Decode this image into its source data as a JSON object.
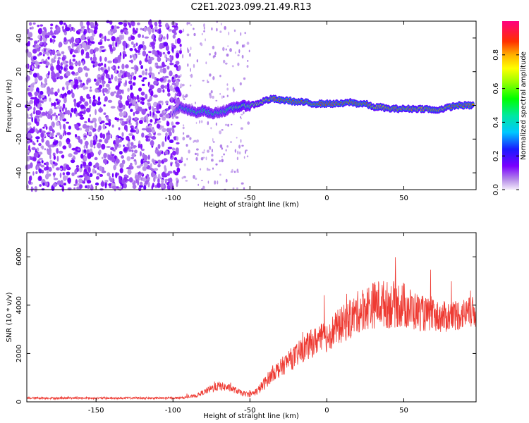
{
  "title": "C2E1.2023.099.21.49.R13",
  "colors": {
    "snr_line": "#ee3a32",
    "spectrogram_low": "#c7a6f2",
    "spectrogram_mid": "#5a00ff"
  },
  "chart_data": [
    {
      "type": "heatmap",
      "xlabel": "Height of straight line (km)",
      "ylabel": "Frequency (Hz)",
      "xlim": [
        -195,
        97
      ],
      "ylim": [
        -50,
        50
      ],
      "x_ticks": [
        -150,
        -100,
        -50,
        0,
        50
      ],
      "y_ticks": [
        -40,
        -20,
        0,
        20,
        40
      ],
      "colorbar": {
        "label": "Normalized spectral amplitude",
        "range": [
          0.0,
          1.0
        ],
        "ticks": [
          "0.0",
          "0.2",
          "0.4",
          "0.6",
          "0.8"
        ],
        "colormap": "purple-blue-cyan-green-yellow-orange-red-magenta"
      },
      "noise_region_x": [
        -195,
        -95
      ],
      "signal_track": {
        "x": [
          -100,
          -95,
          -90,
          -85,
          -80,
          -75,
          -70,
          -65,
          -60,
          -55,
          -50,
          -45,
          -40,
          -35,
          -30,
          -25,
          -20,
          -15,
          -10,
          -5,
          0,
          5,
          10,
          15,
          20,
          25,
          30,
          35,
          40,
          45,
          50,
          55,
          60,
          65,
          70,
          75,
          80,
          85,
          90,
          95
        ],
        "freq": [
          -5,
          -1,
          -3,
          -4,
          -3,
          -5,
          -4,
          -3,
          -1,
          -0.5,
          0,
          1,
          3,
          4,
          3,
          3,
          2,
          2,
          1,
          1,
          1,
          1,
          1,
          2,
          1,
          1,
          -1,
          -1,
          -2,
          -2,
          -2,
          -2,
          -2,
          -2,
          -3,
          -2,
          -1,
          0,
          0,
          0
        ],
        "amplitude": [
          0.2,
          0.45,
          0.5,
          0.55,
          0.55,
          0.55,
          0.5,
          0.55,
          0.6,
          0.65,
          0.6,
          0.7,
          0.8,
          0.85,
          0.88,
          0.9,
          0.9,
          0.88,
          0.92,
          0.9,
          0.9,
          0.85,
          0.9,
          0.85,
          0.9,
          0.9,
          0.8,
          0.8,
          0.85,
          0.85,
          0.85,
          0.85,
          0.8,
          0.85,
          0.85,
          0.8,
          0.85,
          0.9,
          0.85,
          0.85
        ]
      }
    },
    {
      "type": "line",
      "xlabel": "Height of straight line (km)",
      "ylabel": "SNR (10 * v/v)",
      "xlim": [
        -195,
        97
      ],
      "ylim": [
        0,
        7000
      ],
      "x_ticks": [
        -150,
        -100,
        -50,
        0,
        50
      ],
      "y_ticks": [
        0,
        2000,
        4000,
        6000
      ],
      "series": [
        {
          "x": [
            -195,
            -185,
            -175,
            -165,
            -155,
            -145,
            -135,
            -125,
            -115,
            -105,
            -95,
            -90,
            -85,
            -80,
            -75,
            -70,
            -65,
            -60,
            -55,
            -50,
            -45,
            -40,
            -35,
            -30,
            -25,
            -20,
            -15,
            -10,
            -5,
            0,
            5,
            10,
            15,
            20,
            25,
            30,
            35,
            40,
            45,
            50,
            55,
            60,
            65,
            70,
            75,
            80,
            85,
            90,
            95
          ],
          "y": [
            150,
            160,
            150,
            160,
            150,
            155,
            150,
            160,
            150,
            155,
            160,
            200,
            250,
            400,
            550,
            650,
            600,
            500,
            350,
            300,
            450,
            800,
            1200,
            1400,
            1700,
            1900,
            2200,
            2400,
            2600,
            2700,
            3000,
            3200,
            3400,
            3700,
            3900,
            4000,
            4100,
            4000,
            4050,
            4000,
            3800,
            3700,
            3600,
            3550,
            3500,
            3550,
            3600,
            3650,
            3700
          ],
          "noise": [
            80,
            80,
            80,
            80,
            80,
            80,
            80,
            80,
            80,
            80,
            80,
            100,
            120,
            200,
            300,
            350,
            300,
            250,
            200,
            200,
            300,
            500,
            600,
            700,
            800,
            900,
            1000,
            1100,
            1100,
            1200,
            1300,
            1400,
            1500,
            1600,
            1700,
            1800,
            1800,
            1800,
            1800,
            1800,
            1600,
            1400,
            1300,
            1200,
            1200,
            1200,
            1200,
            1200,
            1200
          ]
        }
      ]
    }
  ]
}
